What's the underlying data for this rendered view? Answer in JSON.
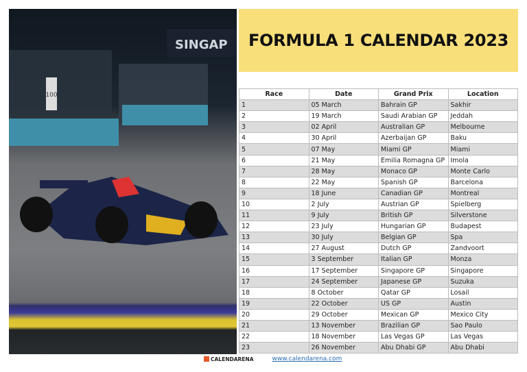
{
  "title": "FORMULA 1 CALENDAR 2023",
  "photo": {
    "sign_text": "SINGAP",
    "marker": "100"
  },
  "table": {
    "headers": [
      "Race",
      "Date",
      "Grand Prix",
      "Location"
    ],
    "rows": [
      [
        "1",
        "05 March",
        "Bahrain GP",
        "Sakhir"
      ],
      [
        "2",
        "19 March",
        "Saudi Arabian GP",
        "Jeddah"
      ],
      [
        "3",
        "02 April",
        "Australian GP",
        "Melbourne"
      ],
      [
        "4",
        "30 April",
        "Azerbaijan GP",
        "Baku"
      ],
      [
        "5",
        "07 May",
        "Miami GP",
        "Miami"
      ],
      [
        "6",
        "21 May",
        "Emilia Romagna GP",
        "Imola"
      ],
      [
        "7",
        "28 May",
        "Monaco GP",
        "Monte Carlo"
      ],
      [
        "8",
        "22 May",
        "Spanish GP",
        "Barcelona"
      ],
      [
        "9",
        "18 June",
        "Canadian GP",
        "Montreal"
      ],
      [
        "10",
        "2 July",
        "Austrian GP",
        "Spielberg"
      ],
      [
        "11",
        "9 July",
        "British GP",
        "Silverstone"
      ],
      [
        "12",
        "23 July",
        "Hungarian GP",
        "Budapest"
      ],
      [
        "13",
        "30 July",
        "Belgian GP",
        "Spa"
      ],
      [
        "14",
        "27 August",
        "Dutch GP",
        "Zandvoort"
      ],
      [
        "15",
        "3 September",
        "Italian GP",
        "Monza"
      ],
      [
        "16",
        "17 September",
        "Singapore GP",
        "Singapore"
      ],
      [
        "17",
        "24 September",
        "Japanese GP",
        "Suzuka"
      ],
      [
        "18",
        "8 October",
        "Qatar GP",
        "Losail"
      ],
      [
        "19",
        "22 October",
        "US GP",
        "Austin"
      ],
      [
        "20",
        "29 October",
        "Mexican GP",
        "Mexico City"
      ],
      [
        "21",
        "13 November",
        "Brazilian GP",
        "Sao Paulo"
      ],
      [
        "22",
        "18 November",
        "Las Vegas GP",
        "Las Vegas"
      ],
      [
        "23",
        "26 November",
        "Abu Dhabi GP",
        "Abu Dhabi"
      ]
    ]
  },
  "footer": {
    "brand": "CALENDARENA",
    "url": "www.calendarena.com"
  },
  "colors": {
    "banner": "#f9df7a",
    "row_alt": "#dcdcdc"
  }
}
